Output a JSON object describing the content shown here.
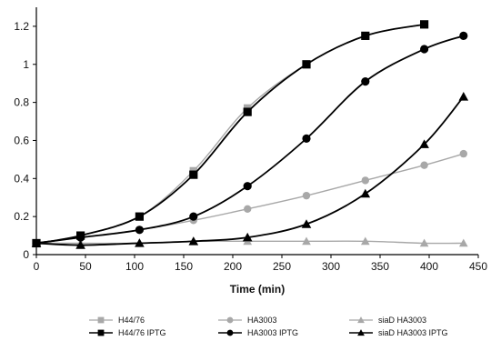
{
  "chart_data": {
    "type": "line",
    "title": "",
    "xlabel": "Time (min)",
    "ylabel": "",
    "xlim": [
      0,
      450
    ],
    "ylim": [
      0,
      1.3
    ],
    "xticks": [
      0,
      50,
      100,
      150,
      200,
      250,
      300,
      350,
      400,
      450
    ],
    "yticks": [
      0,
      0.2,
      0.4,
      0.6,
      0.8,
      1,
      1.2
    ],
    "xtick_labels": [
      "0",
      "50",
      "100",
      "150",
      "200",
      "250",
      "300",
      "350",
      "400",
      "450"
    ],
    "ytick_labels": [
      "0",
      "0.2",
      "0.4",
      "0.6",
      "0.8",
      "1",
      "1.2"
    ],
    "grid": false,
    "legend_position": "bottom",
    "series": [
      {
        "name": "H44/76",
        "color": "#a8a8a8",
        "marker": "square",
        "x": [
          0,
          45,
          105,
          160,
          215,
          275,
          335,
          395
        ],
        "y": [
          0.06,
          0.1,
          0.2,
          0.44,
          0.77,
          1.0,
          1.15,
          1.21
        ]
      },
      {
        "name": "HA3003",
        "color": "#a8a8a8",
        "marker": "circle",
        "x": [
          0,
          45,
          105,
          160,
          215,
          275,
          335,
          395,
          435
        ],
        "y": [
          0.06,
          0.09,
          0.13,
          0.18,
          0.24,
          0.31,
          0.39,
          0.47,
          0.53
        ]
      },
      {
        "name": "siaD HA3003",
        "color": "#a8a8a8",
        "marker": "triangle",
        "x": [
          0,
          45,
          105,
          160,
          215,
          275,
          335,
          395,
          435
        ],
        "y": [
          0.06,
          0.06,
          0.06,
          0.07,
          0.07,
          0.07,
          0.07,
          0.06,
          0.06
        ]
      },
      {
        "name": "H44/76  IPTG",
        "color": "#000000",
        "marker": "square",
        "x": [
          0,
          45,
          105,
          160,
          215,
          275,
          335,
          395
        ],
        "y": [
          0.06,
          0.1,
          0.2,
          0.42,
          0.75,
          1.0,
          1.15,
          1.21
        ]
      },
      {
        "name": "HA3003  IPTG",
        "color": "#000000",
        "marker": "circle",
        "x": [
          0,
          45,
          105,
          160,
          215,
          275,
          335,
          395,
          435
        ],
        "y": [
          0.06,
          0.09,
          0.13,
          0.2,
          0.36,
          0.61,
          0.91,
          1.08,
          1.15
        ]
      },
      {
        "name": "siaD HA3003  IPTG",
        "color": "#000000",
        "marker": "triangle",
        "x": [
          0,
          45,
          105,
          160,
          215,
          275,
          335,
          395,
          435
        ],
        "y": [
          0.06,
          0.05,
          0.06,
          0.07,
          0.09,
          0.16,
          0.32,
          0.58,
          0.83
        ]
      }
    ]
  }
}
